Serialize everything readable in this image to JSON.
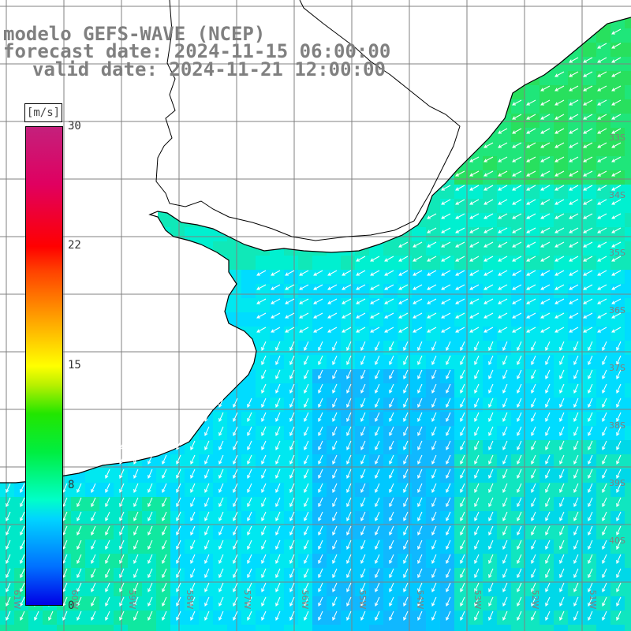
{
  "title": {
    "line1": "modelo GEFS-WAVE (NCEP)",
    "line2": "forecast date: 2024-11-15 06:00:00",
    "line3": "valid date: 2024-11-21 12:00:00"
  },
  "colorbar": {
    "units": "[m/s]",
    "min": 0,
    "max": 30,
    "ticks": [
      "30",
      "22",
      "15",
      "8",
      "0"
    ],
    "tick_values": [
      30,
      22,
      15,
      8,
      0
    ]
  },
  "lat_labels": [
    "33S",
    "34S",
    "35S",
    "36S",
    "37S",
    "38S",
    "39S",
    "40S"
  ],
  "lon_labels": [
    "61W",
    "60W",
    "59W",
    "58W",
    "57W",
    "56W",
    "55W",
    "54W",
    "53W",
    "52W",
    "51W"
  ],
  "colors": {
    "land": "#ffffff",
    "grid": "#808080",
    "coast": "#000000",
    "arrows": "#ffffff",
    "label": "#808080"
  },
  "wind_field": {
    "dominant_direction": "toward southwest (from northeast)",
    "speed_range_ms": [
      7,
      12
    ]
  }
}
